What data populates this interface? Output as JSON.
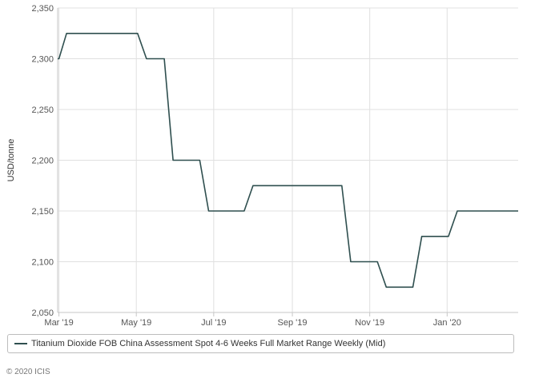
{
  "chart_data": {
    "type": "line",
    "title": "",
    "ylabel": "USD/tonne",
    "xlabel": "",
    "ylim": [
      2050,
      2350
    ],
    "yticks": [
      2050,
      2100,
      2150,
      2200,
      2250,
      2300,
      2350
    ],
    "ytick_labels": [
      "2,050",
      "2,100",
      "2,150",
      "2,200",
      "2,250",
      "2,300",
      "2,350"
    ],
    "xticks": [
      {
        "label": "Mar '19",
        "date": "2019-03-01"
      },
      {
        "label": "May '19",
        "date": "2019-05-01"
      },
      {
        "label": "Jul '19",
        "date": "2019-07-01"
      },
      {
        "label": "Sep '19",
        "date": "2019-09-01"
      },
      {
        "label": "Nov '19",
        "date": "2019-11-01"
      },
      {
        "label": "Jan '20",
        "date": "2020-01-01"
      }
    ],
    "x_range": [
      "2019-02-28",
      "2020-02-26"
    ],
    "grid": true,
    "legend_position": "bottom",
    "series": [
      {
        "name": "Titanium Dioxide FOB China Assessment Spot 4-6 Weeks Full Market Range Weekly (Mid)",
        "color": "#2f4f4f",
        "points": [
          [
            "2019-02-28",
            2300
          ],
          [
            "2019-03-01",
            2300
          ],
          [
            "2019-03-07",
            2325
          ],
          [
            "2019-03-14",
            2325
          ],
          [
            "2019-03-21",
            2325
          ],
          [
            "2019-03-28",
            2325
          ],
          [
            "2019-04-04",
            2325
          ],
          [
            "2019-04-11",
            2325
          ],
          [
            "2019-04-18",
            2325
          ],
          [
            "2019-04-25",
            2325
          ],
          [
            "2019-05-02",
            2325
          ],
          [
            "2019-05-09",
            2300
          ],
          [
            "2019-05-16",
            2300
          ],
          [
            "2019-05-23",
            2300
          ],
          [
            "2019-05-30",
            2200
          ],
          [
            "2019-06-06",
            2200
          ],
          [
            "2019-06-13",
            2200
          ],
          [
            "2019-06-20",
            2200
          ],
          [
            "2019-06-27",
            2150
          ],
          [
            "2019-07-04",
            2150
          ],
          [
            "2019-07-11",
            2150
          ],
          [
            "2019-07-18",
            2150
          ],
          [
            "2019-07-25",
            2150
          ],
          [
            "2019-08-01",
            2175
          ],
          [
            "2019-08-08",
            2175
          ],
          [
            "2019-08-15",
            2175
          ],
          [
            "2019-08-22",
            2175
          ],
          [
            "2019-08-29",
            2175
          ],
          [
            "2019-09-05",
            2175
          ],
          [
            "2019-09-12",
            2175
          ],
          [
            "2019-09-19",
            2175
          ],
          [
            "2019-09-26",
            2175
          ],
          [
            "2019-10-03",
            2175
          ],
          [
            "2019-10-10",
            2175
          ],
          [
            "2019-10-17",
            2100
          ],
          [
            "2019-10-24",
            2100
          ],
          [
            "2019-10-31",
            2100
          ],
          [
            "2019-11-07",
            2100
          ],
          [
            "2019-11-14",
            2075
          ],
          [
            "2019-11-21",
            2075
          ],
          [
            "2019-11-28",
            2075
          ],
          [
            "2019-12-05",
            2075
          ],
          [
            "2019-12-12",
            2125
          ],
          [
            "2019-12-19",
            2125
          ],
          [
            "2019-12-26",
            2125
          ],
          [
            "2020-01-02",
            2125
          ],
          [
            "2020-01-09",
            2150
          ],
          [
            "2020-01-16",
            2150
          ],
          [
            "2020-01-23",
            2150
          ],
          [
            "2020-01-30",
            2150
          ],
          [
            "2020-02-06",
            2150
          ],
          [
            "2020-02-13",
            2150
          ],
          [
            "2020-02-20",
            2150
          ],
          [
            "2020-02-26",
            2150
          ]
        ]
      }
    ]
  },
  "copyright": "© 2020 ICIS",
  "colors": {
    "grid": "#e0e0e0",
    "axis": "#c7c7c7"
  }
}
